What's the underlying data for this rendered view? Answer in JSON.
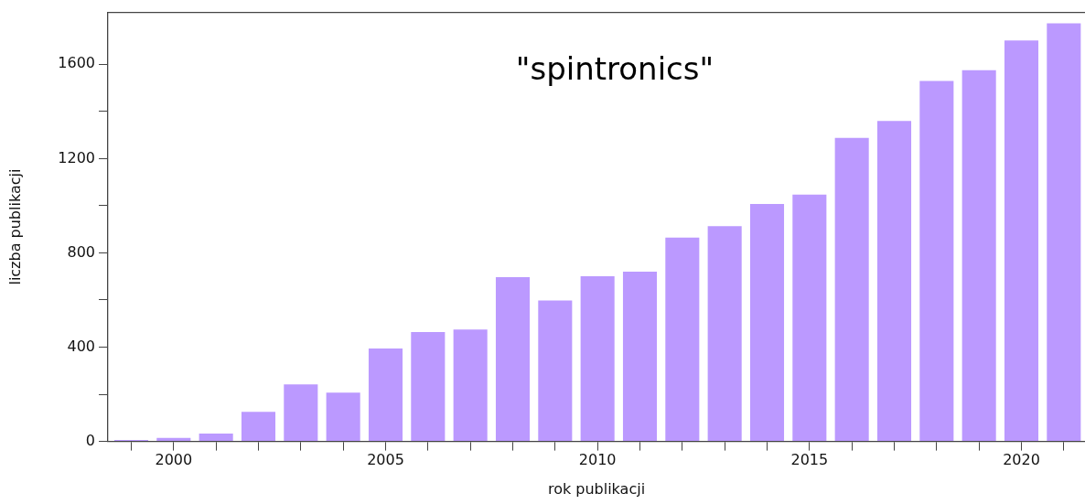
{
  "chart_data": {
    "type": "bar",
    "title": "\"spintronics\"",
    "xlabel": "rok publikacji",
    "ylabel": "liczba publikacji",
    "x": [
      1999,
      2000,
      2001,
      2002,
      2003,
      2004,
      2005,
      2006,
      2007,
      2008,
      2009,
      2010,
      2011,
      2012,
      2013,
      2014,
      2015,
      2016,
      2017,
      2018,
      2019,
      2020,
      2021
    ],
    "values": [
      6,
      15,
      33,
      126,
      242,
      207,
      394,
      464,
      475,
      697,
      598,
      701,
      720,
      865,
      913,
      1007,
      1047,
      1288,
      1360,
      1529,
      1575,
      1701,
      1774
    ],
    "color": "#bb99ff",
    "xlim": [
      1998.45,
      2021.5
    ],
    "xticks": [
      {
        "value": 1999,
        "label": null
      },
      2000,
      {
        "value": 2001,
        "label": null
      },
      {
        "value": 2002,
        "label": null
      },
      {
        "value": 2003,
        "label": null
      },
      {
        "value": 2004,
        "label": null
      },
      2005,
      {
        "value": 2006,
        "label": null
      },
      {
        "value": 2007,
        "label": null
      },
      {
        "value": 2008,
        "label": null
      },
      {
        "value": 2009,
        "label": null
      },
      2010,
      {
        "value": 2011,
        "label": null
      },
      {
        "value": 2012,
        "label": null
      },
      {
        "value": 2013,
        "label": null
      },
      {
        "value": 2014,
        "label": null
      },
      2015,
      {
        "value": 2016,
        "label": null
      },
      {
        "value": 2017,
        "label": null
      },
      {
        "value": 2018,
        "label": null
      },
      {
        "value": 2019,
        "label": null
      },
      2020,
      {
        "value": 2021,
        "label": null
      }
    ],
    "ylim": [
      0,
      1820
    ],
    "yticks": [
      0,
      {
        "value": 200,
        "label": null
      },
      400,
      {
        "value": 600,
        "label": null
      },
      800,
      {
        "value": 1000,
        "label": null
      },
      1200,
      {
        "value": 1400,
        "label": null
      },
      1600
    ],
    "grid": false,
    "legend": false
  }
}
